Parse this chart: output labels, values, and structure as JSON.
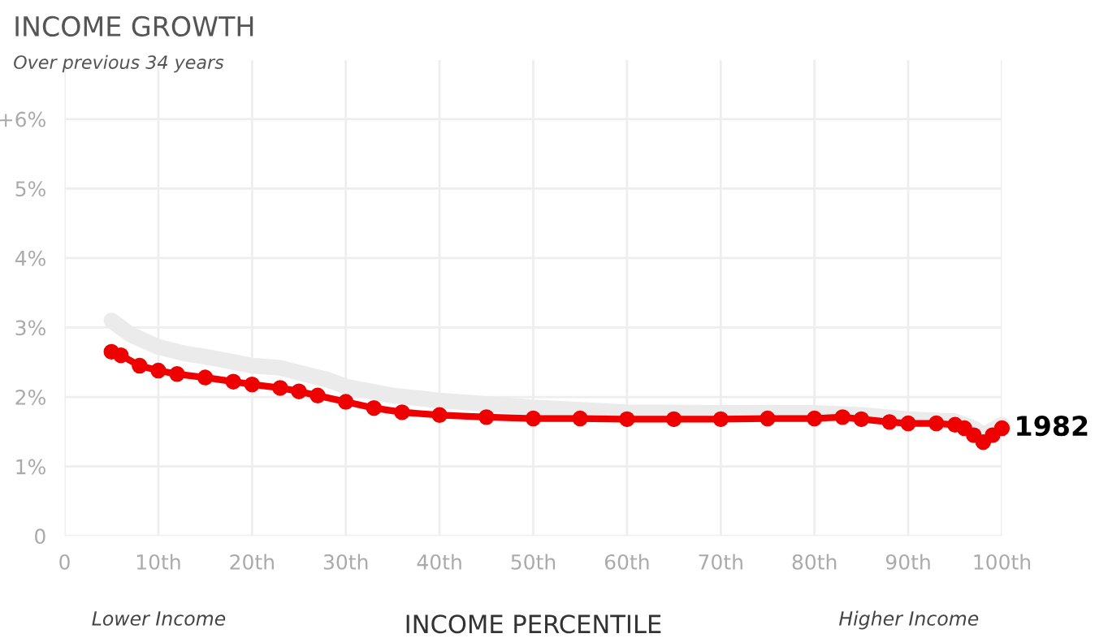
{
  "chart_data": {
    "type": "line",
    "title": "INCOME GROWTH",
    "subtitle": "Over previous 34 years",
    "xlabel": "INCOME PERCENTILE",
    "annotations": [
      "Lower Income",
      "Higher Income"
    ],
    "xlim": [
      0,
      100
    ],
    "ylim": [
      0,
      6.85
    ],
    "xticks": [
      0,
      {
        "value": 10,
        "label": "10th"
      },
      {
        "value": 20,
        "label": "20th"
      },
      {
        "value": 30,
        "label": "30th"
      },
      {
        "value": 40,
        "label": "40th"
      },
      {
        "value": 50,
        "label": "50th"
      },
      {
        "value": 60,
        "label": "60th"
      },
      {
        "value": 70,
        "label": "70th"
      },
      {
        "value": 80,
        "label": "80th"
      },
      {
        "value": 90,
        "label": "90th"
      },
      {
        "value": 100,
        "label": "100th"
      }
    ],
    "yticks": [
      0,
      {
        "value": 1,
        "label": "1%"
      },
      {
        "value": 2,
        "label": "2%"
      },
      {
        "value": 3,
        "label": "3%"
      },
      {
        "value": 4,
        "label": "4%"
      },
      {
        "value": 5,
        "label": "5%"
      },
      {
        "value": 6,
        "label": "+6%"
      }
    ],
    "grid": true,
    "line_style": "solid",
    "series": [
      {
        "color": "#ebebeb",
        "marker": "none",
        "x": [
          5,
          7,
          10,
          13,
          15,
          20,
          23,
          25,
          28,
          30,
          35,
          40,
          45,
          50,
          60,
          70,
          80,
          85,
          90,
          95,
          97,
          98,
          100
        ],
        "values": [
          3.1,
          2.9,
          2.72,
          2.62,
          2.58,
          2.45,
          2.42,
          2.35,
          2.25,
          2.15,
          2.02,
          1.95,
          1.9,
          1.85,
          1.78,
          1.77,
          1.77,
          1.74,
          1.68,
          1.65,
          1.55,
          1.45,
          1.6
        ]
      },
      {
        "name": "1982",
        "color": "#ee0000",
        "marker": "circle",
        "x": [
          5,
          6,
          8,
          10,
          12,
          15,
          18,
          20,
          23,
          25,
          27,
          30,
          33,
          36,
          40,
          45,
          50,
          55,
          60,
          65,
          70,
          75,
          80,
          83,
          85,
          88,
          90,
          93,
          95,
          96,
          97,
          98,
          99,
          100
        ],
        "values": [
          2.65,
          2.6,
          2.45,
          2.38,
          2.33,
          2.28,
          2.22,
          2.18,
          2.13,
          2.08,
          2.02,
          1.93,
          1.84,
          1.78,
          1.74,
          1.71,
          1.69,
          1.69,
          1.68,
          1.68,
          1.68,
          1.69,
          1.69,
          1.71,
          1.68,
          1.64,
          1.62,
          1.62,
          1.6,
          1.55,
          1.45,
          1.35,
          1.45,
          1.55
        ]
      }
    ]
  }
}
